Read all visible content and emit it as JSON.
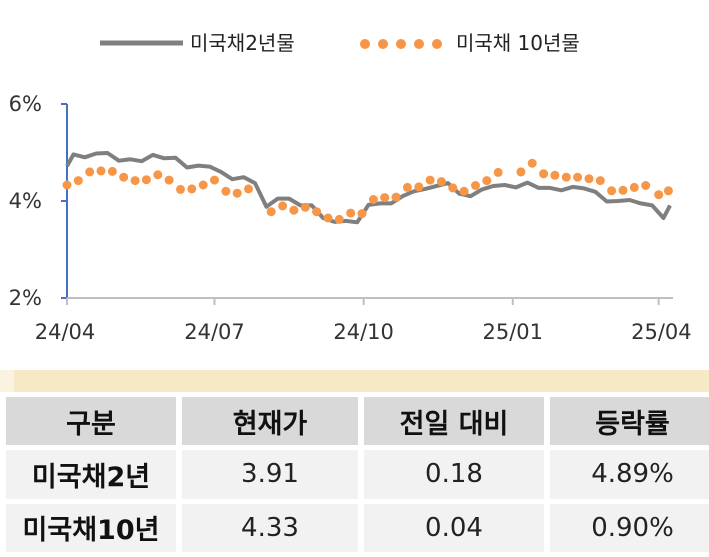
{
  "chart_data": {
    "type": "line",
    "title": "",
    "xlabel": "",
    "ylabel": "",
    "ylim": [
      2,
      6
    ],
    "y_ticks": [
      "2%",
      "4%",
      "6%"
    ],
    "y_tick_values": [
      2,
      4,
      6
    ],
    "x_ticks": [
      "24/04",
      "24/07",
      "24/10",
      "25/01",
      "25/04"
    ],
    "x_tick_values": [
      "2024-04-01",
      "2024-07-01",
      "2024-10-01",
      "2025-01-01",
      "2025-04-01"
    ],
    "x_range": [
      "2024-04-01",
      "2025-04-08"
    ],
    "grid": false,
    "legend_position": "top",
    "series": [
      {
        "name": "미국채2년물",
        "style": "solid-line",
        "color": "#7f7f7f",
        "points": [
          [
            "2024-04-01",
            4.72
          ],
          [
            "2024-04-05",
            4.96
          ],
          [
            "2024-04-12",
            4.9
          ],
          [
            "2024-04-19",
            4.98
          ],
          [
            "2024-04-26",
            4.99
          ],
          [
            "2024-05-03",
            4.83
          ],
          [
            "2024-05-10",
            4.86
          ],
          [
            "2024-05-17",
            4.82
          ],
          [
            "2024-05-24",
            4.95
          ],
          [
            "2024-05-31",
            4.88
          ],
          [
            "2024-06-07",
            4.89
          ],
          [
            "2024-06-14",
            4.69
          ],
          [
            "2024-06-21",
            4.73
          ],
          [
            "2024-06-28",
            4.71
          ],
          [
            "2024-07-05",
            4.6
          ],
          [
            "2024-07-12",
            4.45
          ],
          [
            "2024-07-19",
            4.49
          ],
          [
            "2024-07-26",
            4.37
          ],
          [
            "2024-08-02",
            3.88
          ],
          [
            "2024-08-09",
            4.05
          ],
          [
            "2024-08-16",
            4.05
          ],
          [
            "2024-08-23",
            3.91
          ],
          [
            "2024-08-30",
            3.91
          ],
          [
            "2024-09-06",
            3.65
          ],
          [
            "2024-09-13",
            3.57
          ],
          [
            "2024-09-20",
            3.59
          ],
          [
            "2024-09-27",
            3.56
          ],
          [
            "2024-10-04",
            3.92
          ],
          [
            "2024-10-11",
            3.95
          ],
          [
            "2024-10-18",
            3.95
          ],
          [
            "2024-10-25",
            4.1
          ],
          [
            "2024-11-01",
            4.2
          ],
          [
            "2024-11-08",
            4.25
          ],
          [
            "2024-11-15",
            4.31
          ],
          [
            "2024-11-22",
            4.37
          ],
          [
            "2024-11-29",
            4.15
          ],
          [
            "2024-12-06",
            4.1
          ],
          [
            "2024-12-13",
            4.24
          ],
          [
            "2024-12-20",
            4.31
          ],
          [
            "2024-12-27",
            4.33
          ],
          [
            "2025-01-03",
            4.28
          ],
          [
            "2025-01-10",
            4.38
          ],
          [
            "2025-01-17",
            4.27
          ],
          [
            "2025-01-24",
            4.27
          ],
          [
            "2025-01-31",
            4.22
          ],
          [
            "2025-02-07",
            4.29
          ],
          [
            "2025-02-14",
            4.26
          ],
          [
            "2025-02-21",
            4.19
          ],
          [
            "2025-02-28",
            3.99
          ],
          [
            "2025-03-07",
            4.0
          ],
          [
            "2025-03-14",
            4.02
          ],
          [
            "2025-03-21",
            3.95
          ],
          [
            "2025-03-28",
            3.91
          ],
          [
            "2025-04-04",
            3.65
          ],
          [
            "2025-04-08",
            3.91
          ]
        ]
      },
      {
        "name": "미국채 10년물",
        "style": "dots",
        "color": "#f79646",
        "points": [
          [
            "2024-04-01",
            4.33
          ],
          [
            "2024-04-08",
            4.42
          ],
          [
            "2024-04-15",
            4.6
          ],
          [
            "2024-04-22",
            4.62
          ],
          [
            "2024-04-29",
            4.61
          ],
          [
            "2024-05-06",
            4.49
          ],
          [
            "2024-05-13",
            4.42
          ],
          [
            "2024-05-20",
            4.44
          ],
          [
            "2024-05-27",
            4.54
          ],
          [
            "2024-06-03",
            4.43
          ],
          [
            "2024-06-10",
            4.24
          ],
          [
            "2024-06-17",
            4.25
          ],
          [
            "2024-06-24",
            4.33
          ],
          [
            "2024-07-01",
            4.43
          ],
          [
            "2024-07-08",
            4.2
          ],
          [
            "2024-07-15",
            4.16
          ],
          [
            "2024-07-22",
            4.25
          ],
          [
            "2024-08-05",
            3.78
          ],
          [
            "2024-08-12",
            3.9
          ],
          [
            "2024-08-19",
            3.81
          ],
          [
            "2024-08-26",
            3.87
          ],
          [
            "2024-09-02",
            3.78
          ],
          [
            "2024-09-09",
            3.65
          ],
          [
            "2024-09-16",
            3.62
          ],
          [
            "2024-09-23",
            3.75
          ],
          [
            "2024-09-30",
            3.74
          ],
          [
            "2024-10-07",
            4.03
          ],
          [
            "2024-10-14",
            4.07
          ],
          [
            "2024-10-21",
            4.08
          ],
          [
            "2024-10-28",
            4.28
          ],
          [
            "2024-11-04",
            4.29
          ],
          [
            "2024-11-11",
            4.43
          ],
          [
            "2024-11-18",
            4.4
          ],
          [
            "2024-11-25",
            4.27
          ],
          [
            "2024-12-02",
            4.2
          ],
          [
            "2024-12-09",
            4.32
          ],
          [
            "2024-12-16",
            4.42
          ],
          [
            "2024-12-23",
            4.59
          ],
          [
            "2025-01-06",
            4.6
          ],
          [
            "2025-01-13",
            4.78
          ],
          [
            "2025-01-20",
            4.56
          ],
          [
            "2025-01-27",
            4.53
          ],
          [
            "2025-02-03",
            4.49
          ],
          [
            "2025-02-10",
            4.49
          ],
          [
            "2025-02-17",
            4.46
          ],
          [
            "2025-02-24",
            4.42
          ],
          [
            "2025-03-03",
            4.21
          ],
          [
            "2025-03-10",
            4.22
          ],
          [
            "2025-03-17",
            4.28
          ],
          [
            "2025-03-24",
            4.32
          ],
          [
            "2025-04-01",
            4.13
          ],
          [
            "2025-04-07",
            4.21
          ]
        ]
      }
    ]
  },
  "table": {
    "headers": [
      "구분",
      "현재가",
      "전일 대비",
      "등락률"
    ],
    "rows": [
      [
        "미국채2년",
        "3.91",
        "0.18",
        "4.89%"
      ],
      [
        "미국채10년",
        "4.33",
        "0.04",
        "0.90%"
      ]
    ]
  },
  "colors": {
    "series_2y": "#7f7f7f",
    "series_10y": "#f79646",
    "axis": "#4472c4",
    "header_bg": "#d9d9d9",
    "cell_bg": "#f2f2f2",
    "strip": "#f8e9c6"
  }
}
